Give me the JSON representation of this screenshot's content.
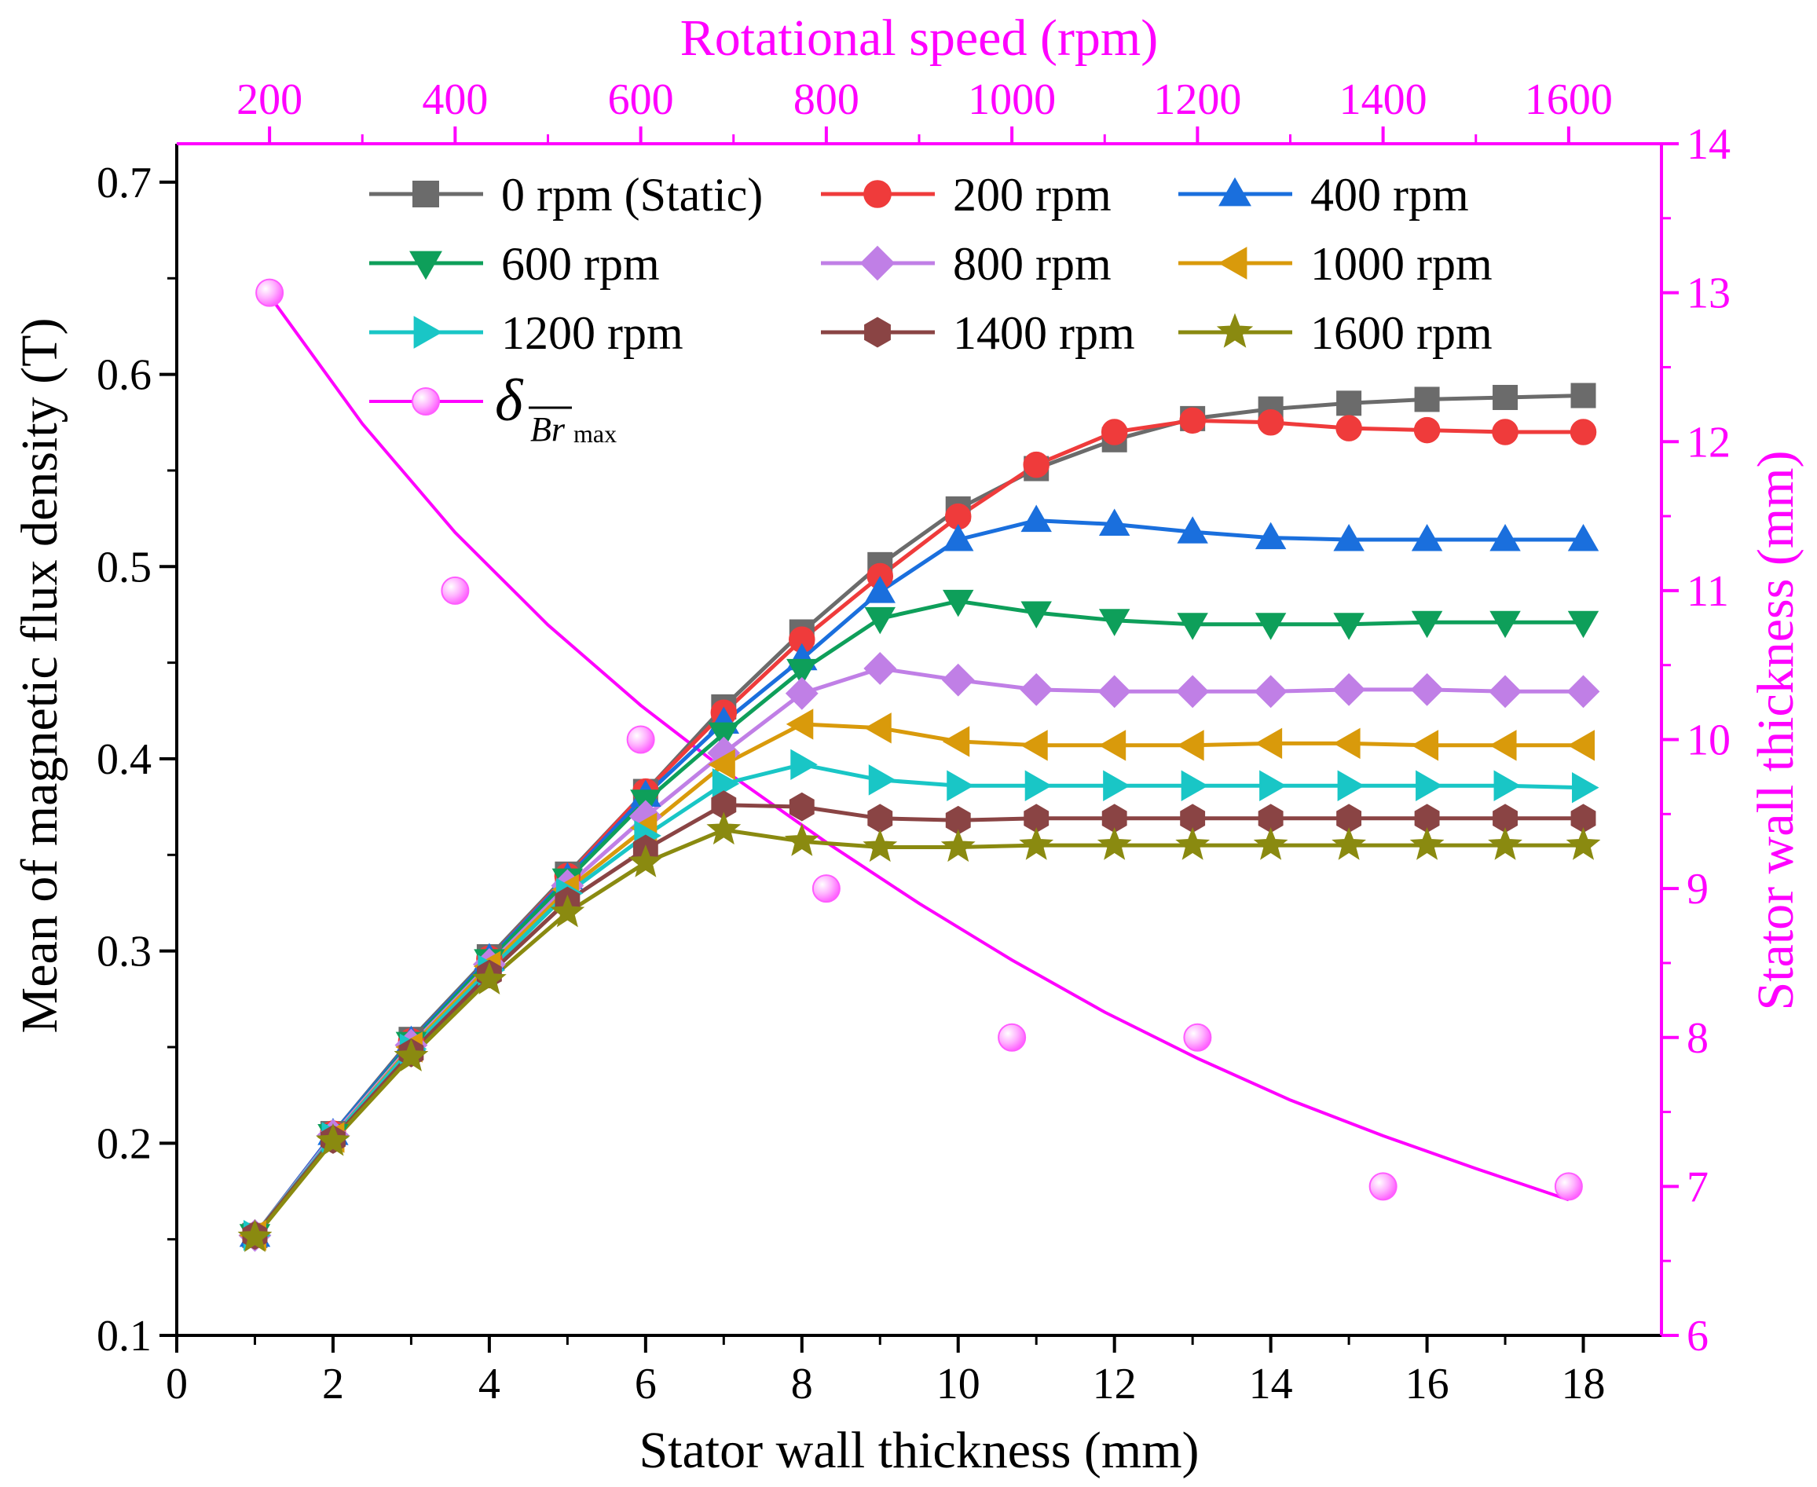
{
  "colors": {
    "magenta": "#ff00ff",
    "axis": "#000000"
  },
  "chart_data": {
    "type": "line",
    "x_axis_bottom": {
      "label": "Stator wall thickness (mm)",
      "range": [
        0,
        19
      ],
      "ticks": [
        0,
        2,
        4,
        6,
        8,
        10,
        12,
        14,
        16,
        18
      ]
    },
    "x_axis_top": {
      "label": "Rotational speed (rpm)",
      "range": [
        100,
        1700
      ],
      "ticks": [
        200,
        400,
        600,
        800,
        1000,
        1200,
        1400,
        1600
      ]
    },
    "y_axis_left": {
      "label": "Mean of magnetic flux density (T)",
      "range": [
        0.1,
        0.72
      ],
      "ticks": [
        0.1,
        0.2,
        0.3,
        0.4,
        0.5,
        0.6,
        0.7
      ]
    },
    "y_axis_right": {
      "label": "Stator wall thickness (mm)",
      "range": [
        6,
        14
      ],
      "ticks": [
        6,
        7,
        8,
        9,
        10,
        11,
        12,
        13,
        14
      ]
    },
    "x": [
      1,
      2,
      3,
      4,
      5,
      6,
      7,
      8,
      9,
      10,
      11,
      12,
      13,
      14,
      15,
      16,
      17,
      18
    ],
    "series": [
      {
        "name": "0 rpm (Static)",
        "color": "#6b6b6b",
        "marker": "square",
        "values": [
          0.152,
          0.205,
          0.254,
          0.297,
          0.34,
          0.383,
          0.427,
          0.466,
          0.501,
          0.53,
          0.551,
          0.566,
          0.577,
          0.582,
          0.585,
          0.587,
          0.588,
          0.589
        ]
      },
      {
        "name": "200 rpm",
        "color": "#ef3b3b",
        "marker": "circle",
        "values": [
          0.152,
          0.205,
          0.253,
          0.296,
          0.339,
          0.383,
          0.424,
          0.462,
          0.495,
          0.526,
          0.553,
          0.57,
          0.576,
          0.575,
          0.572,
          0.571,
          0.57,
          0.57
        ]
      },
      {
        "name": "400 rpm",
        "color": "#1a6fdd",
        "marker": "triangle-up",
        "values": [
          0.152,
          0.205,
          0.253,
          0.296,
          0.338,
          0.381,
          0.419,
          0.452,
          0.487,
          0.514,
          0.524,
          0.522,
          0.518,
          0.515,
          0.514,
          0.514,
          0.514,
          0.514
        ]
      },
      {
        "name": "600 rpm",
        "color": "#0e9f5a",
        "marker": "triangle-down",
        "values": [
          0.152,
          0.204,
          0.252,
          0.295,
          0.337,
          0.378,
          0.413,
          0.446,
          0.473,
          0.482,
          0.476,
          0.472,
          0.47,
          0.47,
          0.47,
          0.471,
          0.471,
          0.471
        ]
      },
      {
        "name": "800 rpm",
        "color": "#c07fe6",
        "marker": "diamond",
        "values": [
          0.152,
          0.204,
          0.251,
          0.293,
          0.334,
          0.37,
          0.403,
          0.434,
          0.447,
          0.441,
          0.436,
          0.435,
          0.435,
          0.435,
          0.436,
          0.436,
          0.435,
          0.435
        ]
      },
      {
        "name": "1000 rpm",
        "color": "#d99a0b",
        "marker": "triangle-left",
        "values": [
          0.152,
          0.203,
          0.25,
          0.292,
          0.332,
          0.364,
          0.397,
          0.418,
          0.416,
          0.409,
          0.407,
          0.407,
          0.407,
          0.408,
          0.408,
          0.407,
          0.407,
          0.407
        ]
      },
      {
        "name": "1200 rpm",
        "color": "#19c6c6",
        "marker": "triangle-right",
        "values": [
          0.152,
          0.203,
          0.249,
          0.29,
          0.33,
          0.36,
          0.387,
          0.397,
          0.389,
          0.386,
          0.386,
          0.386,
          0.386,
          0.386,
          0.386,
          0.386,
          0.386,
          0.385
        ]
      },
      {
        "name": "1400 rpm",
        "color": "#8a4444",
        "marker": "hexagon",
        "values": [
          0.152,
          0.202,
          0.247,
          0.288,
          0.326,
          0.353,
          0.376,
          0.375,
          0.369,
          0.368,
          0.369,
          0.369,
          0.369,
          0.369,
          0.369,
          0.369,
          0.369,
          0.369
        ]
      },
      {
        "name": "1600 rpm",
        "color": "#8a8a10",
        "marker": "star",
        "values": [
          0.151,
          0.201,
          0.245,
          0.285,
          0.32,
          0.346,
          0.363,
          0.357,
          0.354,
          0.354,
          0.355,
          0.355,
          0.355,
          0.355,
          0.355,
          0.355,
          0.355,
          0.355
        ]
      }
    ],
    "delta_series": {
      "legend_label": "δ",
      "subscript": "Br",
      "subscript_suffix": "max",
      "color": "#ff00ff",
      "points_rpm": [
        200,
        400,
        600,
        800,
        1000,
        1200,
        1400,
        1600
      ],
      "points_thickness": [
        13,
        11,
        10,
        9,
        8,
        8,
        7,
        7
      ],
      "fit_rpm": [
        200,
        300,
        400,
        500,
        600,
        700,
        800,
        900,
        1000,
        1100,
        1200,
        1300,
        1400,
        1500,
        1600
      ],
      "fit_thickness": [
        12.98,
        12.12,
        11.39,
        10.77,
        10.23,
        9.75,
        9.31,
        8.9,
        8.52,
        8.17,
        7.86,
        7.58,
        7.34,
        7.12,
        6.91
      ]
    }
  }
}
